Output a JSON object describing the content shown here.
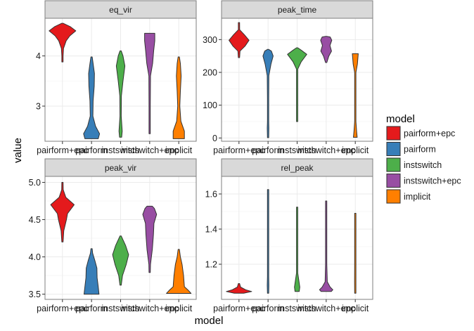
{
  "chart_data": [
    {
      "type": "violin",
      "title": "eq_vir",
      "xlabel": "model",
      "ylabel": "value",
      "categories": [
        "pairform+epc",
        "pairform",
        "instswitch",
        "instswitch+epc",
        "implicit"
      ],
      "ylim": [
        2.3,
        4.75
      ],
      "yticks": [
        3,
        4
      ],
      "ytick_labels": [
        "3",
        "4"
      ],
      "grid": true,
      "series": [
        {
          "name": "pairform+epc",
          "min": 3.88,
          "max": 4.65,
          "profile": [
            [
              3.88,
              0.02
            ],
            [
              4.0,
              0.03
            ],
            [
              4.15,
              0.08
            ],
            [
              4.3,
              0.28
            ],
            [
              4.4,
              0.55
            ],
            [
              4.5,
              1.0
            ],
            [
              4.58,
              0.6
            ],
            [
              4.65,
              0.0
            ]
          ]
        },
        {
          "name": "pairform",
          "min": 2.35,
          "max": 3.98,
          "profile": [
            [
              2.35,
              0.5
            ],
            [
              2.45,
              0.6
            ],
            [
              2.6,
              0.3
            ],
            [
              2.8,
              0.1
            ],
            [
              3.1,
              0.12
            ],
            [
              3.4,
              0.2
            ],
            [
              3.65,
              0.22
            ],
            [
              3.85,
              0.12
            ],
            [
              3.98,
              0.0
            ]
          ]
        },
        {
          "name": "instswitch",
          "min": 2.38,
          "max": 4.1,
          "profile": [
            [
              2.38,
              0.08
            ],
            [
              2.5,
              0.12
            ],
            [
              2.8,
              0.05
            ],
            [
              3.2,
              0.06
            ],
            [
              3.5,
              0.18
            ],
            [
              3.8,
              0.32
            ],
            [
              4.0,
              0.18
            ],
            [
              4.1,
              0.0
            ]
          ]
        },
        {
          "name": "instswitch+epc",
          "min": 2.45,
          "max": 4.45,
          "profile": [
            [
              2.45,
              0.0
            ],
            [
              3.0,
              0.02
            ],
            [
              3.6,
              0.06
            ],
            [
              3.85,
              0.22
            ],
            [
              4.1,
              0.3
            ],
            [
              4.3,
              0.38
            ],
            [
              4.45,
              0.38
            ]
          ]
        },
        {
          "name": "implicit",
          "min": 2.35,
          "max": 3.98,
          "profile": [
            [
              2.35,
              0.42
            ],
            [
              2.5,
              0.42
            ],
            [
              2.7,
              0.16
            ],
            [
              3.0,
              0.08
            ],
            [
              3.3,
              0.12
            ],
            [
              3.6,
              0.18
            ],
            [
              3.85,
              0.12
            ],
            [
              3.98,
              0.0
            ]
          ]
        }
      ]
    },
    {
      "type": "violin",
      "title": "peak_time",
      "xlabel": "model",
      "ylabel": "value",
      "categories": [
        "pairform+epc",
        "pairform",
        "instswitch",
        "instswitch+epc",
        "implicit"
      ],
      "ylim": [
        -10,
        365
      ],
      "yticks": [
        0,
        100,
        200,
        300
      ],
      "ytick_labels": [
        "0",
        "100",
        "200",
        "300"
      ],
      "grid": true,
      "series": [
        {
          "name": "pairform+epc",
          "min": 245,
          "max": 352,
          "profile": [
            [
              245,
              0.02
            ],
            [
              265,
              0.08
            ],
            [
              280,
              0.45
            ],
            [
              298,
              0.75
            ],
            [
              315,
              0.4
            ],
            [
              330,
              0.05
            ],
            [
              352,
              0.0
            ]
          ]
        },
        {
          "name": "pairform",
          "min": 1,
          "max": 270,
          "profile": [
            [
              1,
              0.0
            ],
            [
              30,
              0.06
            ],
            [
              50,
              0.03
            ],
            [
              120,
              0.02
            ],
            [
              190,
              0.06
            ],
            [
              225,
              0.22
            ],
            [
              250,
              0.38
            ],
            [
              265,
              0.25
            ],
            [
              270,
              0.0
            ]
          ]
        },
        {
          "name": "instswitch",
          "min": 50,
          "max": 275,
          "profile": [
            [
              50,
              0.0
            ],
            [
              150,
              0.015
            ],
            [
              210,
              0.03
            ],
            [
              232,
              0.3
            ],
            [
              255,
              0.72
            ],
            [
              268,
              0.3
            ],
            [
              275,
              0.0
            ]
          ]
        },
        {
          "name": "instswitch+epc",
          "min": 230,
          "max": 310,
          "profile": [
            [
              230,
              0.02
            ],
            [
              250,
              0.2
            ],
            [
              265,
              0.4
            ],
            [
              282,
              0.28
            ],
            [
              298,
              0.42
            ],
            [
              308,
              0.3
            ],
            [
              310,
              0.0
            ]
          ]
        },
        {
          "name": "implicit",
          "min": 2,
          "max": 257,
          "profile": [
            [
              2,
              0.14
            ],
            [
              20,
              0.1
            ],
            [
              50,
              0.03
            ],
            [
              140,
              0.02
            ],
            [
              200,
              0.04
            ],
            [
              225,
              0.16
            ],
            [
              257,
              0.22
            ]
          ]
        }
      ]
    },
    {
      "type": "violin",
      "title": "peak_vir",
      "xlabel": "model",
      "ylabel": "value",
      "categories": [
        "pairform+epc",
        "pairform",
        "instswitch",
        "instswitch+epc",
        "implicit"
      ],
      "ylim": [
        3.43,
        5.08
      ],
      "yticks": [
        3.5,
        4.0,
        4.5,
        5.0
      ],
      "ytick_labels": [
        "3.5",
        "4.0",
        "4.5",
        "5.0"
      ],
      "grid": true,
      "series": [
        {
          "name": "pairform+epc",
          "min": 4.2,
          "max": 5.0,
          "profile": [
            [
              4.2,
              0.02
            ],
            [
              4.35,
              0.1
            ],
            [
              4.5,
              0.3
            ],
            [
              4.58,
              0.38
            ],
            [
              4.7,
              0.88
            ],
            [
              4.8,
              0.25
            ],
            [
              4.9,
              0.06
            ],
            [
              5.0,
              0.0
            ]
          ]
        },
        {
          "name": "pairform",
          "min": 3.5,
          "max": 4.11,
          "profile": [
            [
              3.5,
              0.56
            ],
            [
              3.6,
              0.5
            ],
            [
              3.72,
              0.42
            ],
            [
              3.85,
              0.4
            ],
            [
              3.95,
              0.25
            ],
            [
              4.05,
              0.08
            ],
            [
              4.11,
              0.0
            ]
          ]
        },
        {
          "name": "instswitch",
          "min": 3.62,
          "max": 4.28,
          "profile": [
            [
              3.62,
              0.0
            ],
            [
              3.75,
              0.14
            ],
            [
              3.9,
              0.42
            ],
            [
              4.03,
              0.6
            ],
            [
              4.15,
              0.38
            ],
            [
              4.28,
              0.0
            ]
          ]
        },
        {
          "name": "instswitch+epc",
          "min": 3.79,
          "max": 4.68,
          "profile": [
            [
              3.79,
              0.0
            ],
            [
              3.9,
              0.06
            ],
            [
              4.1,
              0.2
            ],
            [
              4.3,
              0.28
            ],
            [
              4.45,
              0.32
            ],
            [
              4.57,
              0.52
            ],
            [
              4.65,
              0.35
            ],
            [
              4.68,
              0.2
            ]
          ]
        },
        {
          "name": "implicit",
          "min": 3.51,
          "max": 4.1,
          "profile": [
            [
              3.51,
              0.92
            ],
            [
              3.55,
              0.72
            ],
            [
              3.6,
              0.42
            ],
            [
              3.75,
              0.36
            ],
            [
              3.9,
              0.25
            ],
            [
              4.0,
              0.12
            ],
            [
              4.1,
              0.0
            ]
          ]
        }
      ]
    },
    {
      "type": "violin",
      "title": "rel_peak",
      "xlabel": "model",
      "ylabel": "value",
      "categories": [
        "pairform+epc",
        "pairform",
        "instswitch",
        "instswitch+epc",
        "implicit"
      ],
      "ylim": [
        1.0,
        1.7
      ],
      "yticks": [
        1.2,
        1.4,
        1.6
      ],
      "ytick_labels": [
        "1.2",
        "1.4",
        "1.6"
      ],
      "grid": true,
      "series": [
        {
          "name": "pairform+epc",
          "min": 1.035,
          "max": 1.09,
          "profile": [
            [
              1.035,
              0.35
            ],
            [
              1.045,
              0.95
            ],
            [
              1.055,
              0.5
            ],
            [
              1.07,
              0.12
            ],
            [
              1.09,
              0.0
            ]
          ]
        },
        {
          "name": "pairform",
          "min": 1.035,
          "max": 1.625,
          "profile": [
            [
              1.035,
              0.04
            ],
            [
              1.08,
              0.06
            ],
            [
              1.13,
              0.03
            ],
            [
              1.3,
              0.02
            ],
            [
              1.45,
              0.03
            ],
            [
              1.625,
              0.0
            ]
          ]
        },
        {
          "name": "instswitch",
          "min": 1.045,
          "max": 1.525,
          "profile": [
            [
              1.045,
              0.16
            ],
            [
              1.07,
              0.2
            ],
            [
              1.1,
              0.14
            ],
            [
              1.15,
              0.03
            ],
            [
              1.3,
              0.02
            ],
            [
              1.48,
              0.03
            ],
            [
              1.525,
              0.0
            ]
          ]
        },
        {
          "name": "instswitch+epc",
          "min": 1.045,
          "max": 1.56,
          "profile": [
            [
              1.045,
              0.38
            ],
            [
              1.055,
              0.5
            ],
            [
              1.07,
              0.3
            ],
            [
              1.1,
              0.08
            ],
            [
              1.2,
              0.02
            ],
            [
              1.56,
              0.0
            ]
          ]
        },
        {
          "name": "implicit",
          "min": 1.035,
          "max": 1.49,
          "profile": [
            [
              1.035,
              0.03
            ],
            [
              1.1,
              0.05
            ],
            [
              1.2,
              0.02
            ],
            [
              1.35,
              0.02
            ],
            [
              1.45,
              0.04
            ],
            [
              1.49,
              0.0
            ]
          ]
        }
      ]
    }
  ],
  "figure": {
    "xlabel": "model",
    "ylabel": "value",
    "panel_titles": [
      "eq_vir",
      "peak_time",
      "peak_vir",
      "rel_peak"
    ],
    "x_tick_labels": [
      "pairform+epc",
      "pairform",
      "instswitch",
      "instswitch+epc",
      "implicit"
    ]
  },
  "legend": {
    "title": "model",
    "placement": "right",
    "items": [
      {
        "label": "pairform+epc",
        "color": "#e41a1c"
      },
      {
        "label": "pairform",
        "color": "#377eb8"
      },
      {
        "label": "instswitch",
        "color": "#4daf4a"
      },
      {
        "label": "instswitch+epc",
        "color": "#984ea3"
      },
      {
        "label": "implicit",
        "color": "#ff7f00"
      }
    ]
  },
  "colors": {
    "strip_bg": "#d9d9d9",
    "panel_border": "#7f7f7f",
    "grid_major": "#ebebeb",
    "grid_minor": "#f5f5f5",
    "violin_outline": "#333333"
  }
}
